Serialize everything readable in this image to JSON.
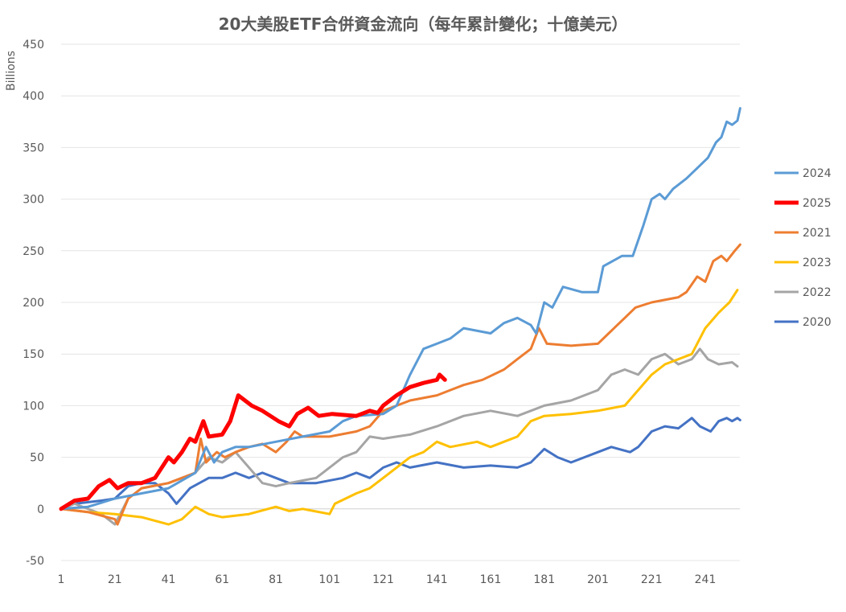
{
  "chart_data": {
    "type": "line",
    "title": "20大美股ETF合併資金流向（每年累計變化；十億美元）",
    "xlabel": "",
    "ylabel": "Billions",
    "xlim": [
      1,
      254
    ],
    "ylim": [
      -50,
      450
    ],
    "x_ticks": [
      1,
      21,
      41,
      61,
      81,
      101,
      121,
      141,
      161,
      181,
      201,
      221,
      241
    ],
    "y_ticks": [
      -50,
      0,
      50,
      100,
      150,
      200,
      250,
      300,
      350,
      400,
      450
    ],
    "grid": true,
    "legend_position": "right",
    "series": [
      {
        "name": "2020",
        "color": "#4472C4",
        "width": 3,
        "points": [
          [
            1,
            0
          ],
          [
            6,
            5
          ],
          [
            16,
            8
          ],
          [
            21,
            10
          ],
          [
            26,
            22
          ],
          [
            31,
            25
          ],
          [
            36,
            25
          ],
          [
            41,
            15
          ],
          [
            44,
            5
          ],
          [
            49,
            20
          ],
          [
            56,
            30
          ],
          [
            61,
            30
          ],
          [
            66,
            35
          ],
          [
            71,
            30
          ],
          [
            76,
            35
          ],
          [
            81,
            30
          ],
          [
            86,
            25
          ],
          [
            96,
            25
          ],
          [
            106,
            30
          ],
          [
            111,
            35
          ],
          [
            116,
            30
          ],
          [
            121,
            40
          ],
          [
            126,
            45
          ],
          [
            131,
            40
          ],
          [
            141,
            45
          ],
          [
            151,
            40
          ],
          [
            161,
            42
          ],
          [
            171,
            40
          ],
          [
            176,
            45
          ],
          [
            181,
            58
          ],
          [
            186,
            50
          ],
          [
            191,
            45
          ],
          [
            201,
            55
          ],
          [
            206,
            60
          ],
          [
            213,
            55
          ],
          [
            216,
            60
          ],
          [
            221,
            75
          ],
          [
            226,
            80
          ],
          [
            231,
            78
          ],
          [
            236,
            88
          ],
          [
            239,
            80
          ],
          [
            243,
            75
          ],
          [
            246,
            85
          ],
          [
            249,
            88
          ],
          [
            251,
            85
          ],
          [
            253,
            88
          ],
          [
            254,
            86
          ]
        ]
      },
      {
        "name": "2022",
        "color": "#A5A5A5",
        "width": 3,
        "points": [
          [
            1,
            0
          ],
          [
            6,
            5
          ],
          [
            16,
            -5
          ],
          [
            21,
            -15
          ],
          [
            26,
            10
          ],
          [
            31,
            20
          ],
          [
            41,
            25
          ],
          [
            51,
            35
          ],
          [
            56,
            50
          ],
          [
            61,
            45
          ],
          [
            66,
            55
          ],
          [
            71,
            40
          ],
          [
            76,
            25
          ],
          [
            81,
            22
          ],
          [
            86,
            25
          ],
          [
            96,
            30
          ],
          [
            101,
            40
          ],
          [
            106,
            50
          ],
          [
            111,
            55
          ],
          [
            116,
            70
          ],
          [
            121,
            68
          ],
          [
            126,
            70
          ],
          [
            131,
            72
          ],
          [
            141,
            80
          ],
          [
            151,
            90
          ],
          [
            161,
            95
          ],
          [
            171,
            90
          ],
          [
            176,
            95
          ],
          [
            181,
            100
          ],
          [
            191,
            105
          ],
          [
            201,
            115
          ],
          [
            206,
            130
          ],
          [
            211,
            135
          ],
          [
            216,
            130
          ],
          [
            221,
            145
          ],
          [
            226,
            150
          ],
          [
            231,
            140
          ],
          [
            236,
            145
          ],
          [
            239,
            155
          ],
          [
            242,
            145
          ],
          [
            246,
            140
          ],
          [
            251,
            142
          ],
          [
            253,
            138
          ]
        ]
      },
      {
        "name": "2023",
        "color": "#FFC000",
        "width": 3,
        "points": [
          [
            1,
            0
          ],
          [
            11,
            -3
          ],
          [
            21,
            -5
          ],
          [
            31,
            -8
          ],
          [
            41,
            -15
          ],
          [
            46,
            -10
          ],
          [
            51,
            2
          ],
          [
            56,
            -5
          ],
          [
            61,
            -8
          ],
          [
            71,
            -5
          ],
          [
            81,
            2
          ],
          [
            86,
            -2
          ],
          [
            91,
            0
          ],
          [
            101,
            -5
          ],
          [
            103,
            5
          ],
          [
            111,
            15
          ],
          [
            116,
            20
          ],
          [
            121,
            30
          ],
          [
            126,
            40
          ],
          [
            131,
            50
          ],
          [
            136,
            55
          ],
          [
            141,
            65
          ],
          [
            146,
            60
          ],
          [
            156,
            65
          ],
          [
            161,
            60
          ],
          [
            166,
            65
          ],
          [
            171,
            70
          ],
          [
            176,
            85
          ],
          [
            181,
            90
          ],
          [
            191,
            92
          ],
          [
            201,
            95
          ],
          [
            211,
            100
          ],
          [
            216,
            115
          ],
          [
            221,
            130
          ],
          [
            226,
            140
          ],
          [
            231,
            145
          ],
          [
            236,
            150
          ],
          [
            241,
            175
          ],
          [
            246,
            190
          ],
          [
            250,
            200
          ],
          [
            253,
            212
          ]
        ]
      },
      {
        "name": "2021",
        "color": "#ED7D31",
        "width": 3,
        "points": [
          [
            1,
            0
          ],
          [
            11,
            -3
          ],
          [
            21,
            -10
          ],
          [
            22,
            -15
          ],
          [
            26,
            10
          ],
          [
            31,
            20
          ],
          [
            41,
            25
          ],
          [
            46,
            30
          ],
          [
            51,
            35
          ],
          [
            53,
            68
          ],
          [
            55,
            45
          ],
          [
            59,
            55
          ],
          [
            62,
            50
          ],
          [
            66,
            55
          ],
          [
            71,
            60
          ],
          [
            76,
            63
          ],
          [
            81,
            55
          ],
          [
            85,
            65
          ],
          [
            88,
            75
          ],
          [
            91,
            70
          ],
          [
            101,
            70
          ],
          [
            111,
            75
          ],
          [
            116,
            80
          ],
          [
            121,
            95
          ],
          [
            126,
            100
          ],
          [
            131,
            105
          ],
          [
            141,
            110
          ],
          [
            146,
            115
          ],
          [
            151,
            120
          ],
          [
            158,
            125
          ],
          [
            166,
            135
          ],
          [
            171,
            145
          ],
          [
            176,
            155
          ],
          [
            179,
            175
          ],
          [
            182,
            160
          ],
          [
            191,
            158
          ],
          [
            201,
            160
          ],
          [
            205,
            170
          ],
          [
            211,
            185
          ],
          [
            215,
            195
          ],
          [
            221,
            200
          ],
          [
            231,
            205
          ],
          [
            234,
            210
          ],
          [
            238,
            225
          ],
          [
            241,
            220
          ],
          [
            244,
            240
          ],
          [
            247,
            245
          ],
          [
            249,
            240
          ],
          [
            252,
            250
          ],
          [
            254,
            256
          ]
        ]
      },
      {
        "name": "2024",
        "color": "#5B9BD5",
        "width": 3,
        "points": [
          [
            1,
            0
          ],
          [
            11,
            2
          ],
          [
            21,
            10
          ],
          [
            31,
            15
          ],
          [
            41,
            20
          ],
          [
            51,
            35
          ],
          [
            55,
            60
          ],
          [
            58,
            45
          ],
          [
            61,
            55
          ],
          [
            66,
            60
          ],
          [
            71,
            60
          ],
          [
            81,
            65
          ],
          [
            91,
            70
          ],
          [
            101,
            75
          ],
          [
            106,
            85
          ],
          [
            111,
            90
          ],
          [
            121,
            92
          ],
          [
            126,
            100
          ],
          [
            131,
            130
          ],
          [
            136,
            155
          ],
          [
            141,
            160
          ],
          [
            146,
            165
          ],
          [
            151,
            175
          ],
          [
            161,
            170
          ],
          [
            166,
            180
          ],
          [
            171,
            185
          ],
          [
            176,
            178
          ],
          [
            178,
            170
          ],
          [
            181,
            200
          ],
          [
            184,
            195
          ],
          [
            188,
            215
          ],
          [
            195,
            210
          ],
          [
            201,
            210
          ],
          [
            203,
            235
          ],
          [
            210,
            245
          ],
          [
            214,
            245
          ],
          [
            218,
            275
          ],
          [
            221,
            300
          ],
          [
            224,
            305
          ],
          [
            226,
            300
          ],
          [
            229,
            310
          ],
          [
            234,
            320
          ],
          [
            238,
            330
          ],
          [
            242,
            340
          ],
          [
            245,
            355
          ],
          [
            247,
            360
          ],
          [
            249,
            375
          ],
          [
            251,
            372
          ],
          [
            253,
            376
          ],
          [
            254,
            388
          ]
        ]
      },
      {
        "name": "2025",
        "color": "#FF0000",
        "width": 5,
        "points": [
          [
            1,
            0
          ],
          [
            6,
            8
          ],
          [
            11,
            10
          ],
          [
            15,
            22
          ],
          [
            19,
            28
          ],
          [
            22,
            20
          ],
          [
            26,
            25
          ],
          [
            31,
            25
          ],
          [
            36,
            30
          ],
          [
            41,
            50
          ],
          [
            43,
            45
          ],
          [
            46,
            55
          ],
          [
            49,
            68
          ],
          [
            51,
            65
          ],
          [
            54,
            85
          ],
          [
            56,
            70
          ],
          [
            61,
            72
          ],
          [
            64,
            85
          ],
          [
            67,
            110
          ],
          [
            72,
            100
          ],
          [
            76,
            95
          ],
          [
            82,
            85
          ],
          [
            86,
            80
          ],
          [
            89,
            92
          ],
          [
            93,
            98
          ],
          [
            97,
            90
          ],
          [
            102,
            92
          ],
          [
            111,
            90
          ],
          [
            116,
            95
          ],
          [
            119,
            93
          ],
          [
            121,
            100
          ],
          [
            126,
            110
          ],
          [
            131,
            118
          ],
          [
            136,
            122
          ],
          [
            141,
            125
          ],
          [
            142,
            130
          ],
          [
            144,
            125
          ]
        ]
      }
    ],
    "legend_order": [
      "2024",
      "2025",
      "2021",
      "2023",
      "2022",
      "2020"
    ]
  }
}
